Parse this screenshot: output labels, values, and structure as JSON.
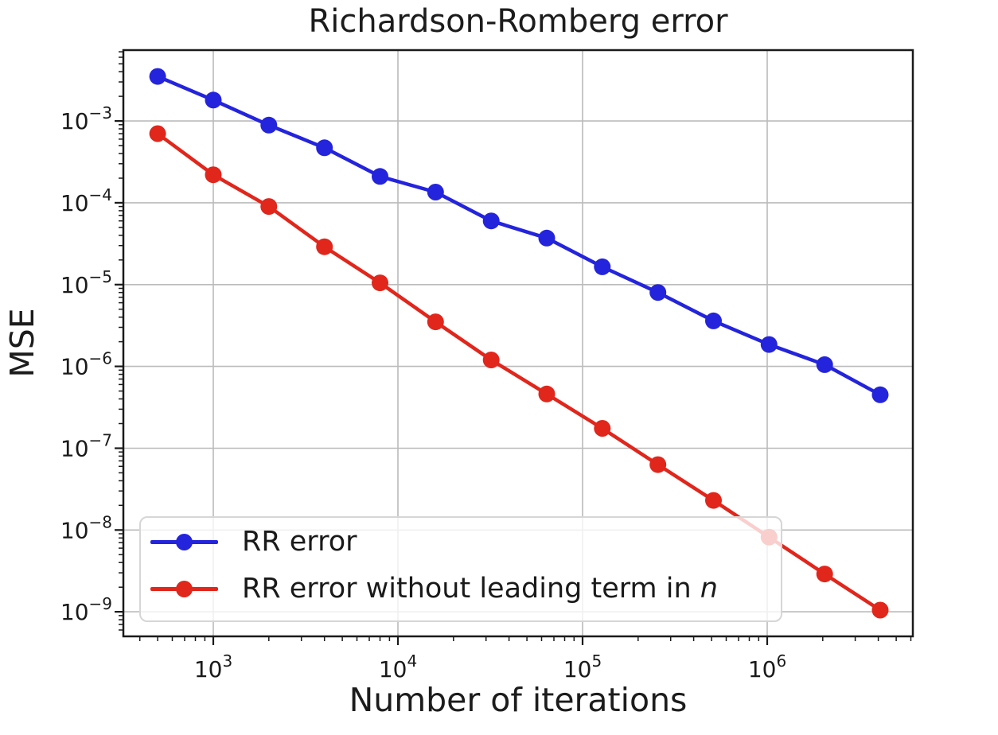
{
  "figure": {
    "title": "Richardson-Romberg error",
    "xlabel": "Number of iterations",
    "ylabel": "MSE"
  },
  "legend": {
    "position": "lower left",
    "entries": [
      {
        "label": "RR error",
        "label_italic_suffix": "",
        "color": "#2424dd"
      },
      {
        "label": "RR error without leading term in ",
        "label_italic_suffix": "n",
        "color": "#e1261c"
      }
    ]
  },
  "style": {
    "series_blue": "#2424dd",
    "series_red": "#e1261c",
    "grid_color": "#bbbbbb",
    "spine_color": "#1a1a1a",
    "text_color": "#1a1a1a"
  },
  "chart_data": {
    "type": "line",
    "title": "Richardson-Romberg error",
    "xlabel": "Number of iterations",
    "ylabel": "MSE",
    "x_scale": "log",
    "y_scale": "log",
    "grid": true,
    "legend_position": "lower left",
    "x": [
      500,
      1000,
      2000,
      4000,
      8000,
      16000,
      32000,
      64000,
      128000,
      256000,
      512000,
      1024000,
      2048000,
      4096000
    ],
    "series": [
      {
        "name": "RR error",
        "color": "#2424dd",
        "values": [
          0.0035,
          0.0018,
          0.00089,
          0.00047,
          0.00021,
          0.000135,
          6e-05,
          3.7e-05,
          1.65e-05,
          8e-06,
          3.6e-06,
          1.85e-06,
          1.05e-06,
          4.5e-07
        ]
      },
      {
        "name": "RR error without leading term in n",
        "color": "#e1261c",
        "values": [
          0.0007,
          0.00022,
          9e-05,
          2.9e-05,
          1.05e-05,
          3.5e-06,
          1.2e-06,
          4.6e-07,
          1.75e-07,
          6.3e-08,
          2.3e-08,
          8.2e-09,
          2.9e-09,
          1.05e-09
        ]
      }
    ],
    "x_tick_exponents": [
      3,
      4,
      5,
      6
    ],
    "y_tick_exponents": [
      -3,
      -4,
      -5,
      -6,
      -7,
      -8,
      -9
    ],
    "xlim_log10": [
      2.513,
      6.789
    ],
    "ylim_log10": [
      -2.134,
      -9.3
    ]
  }
}
